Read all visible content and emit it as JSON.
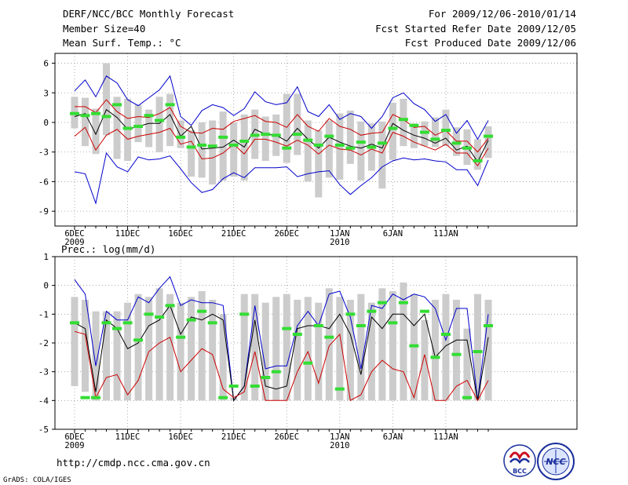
{
  "header": {
    "title": "DERF/NCC/BCC Monthly Forecast",
    "member_size": "Member Size=40",
    "variable": "Mean Surf. Temp.: °C",
    "forecast_period": "For 2009/12/06-2010/01/14",
    "started_refer": "Fcst Started Refer Date 2009/12/05",
    "produced": "Fcst Produced Date 2009/12/06"
  },
  "footer": {
    "url": "http://cmdp.ncc.cma.gov.cn",
    "credit": "GrADS: COLA/IGES",
    "logo_bcc": "BCC",
    "logo_ncc": "NCC"
  },
  "colors": {
    "box": "#cccccc",
    "mean": "#33dd33",
    "median": "#000000",
    "envelope": "#0000cc",
    "quartile": "#cc0000",
    "grid": "#999999"
  },
  "chart_data": [
    {
      "type": "line",
      "name": "temperature",
      "title": "Mean Surf. Temp.: °C",
      "ylabel": "°C",
      "ylim": [
        -10.5,
        7
      ],
      "yticks": [
        6,
        3,
        0,
        -3,
        -6,
        -9
      ],
      "grid": true,
      "x_tick_days": [
        1,
        6,
        11,
        16,
        21,
        26,
        31,
        36
      ],
      "x_tick_labels": [
        "6DEC",
        "11DEC",
        "16DEC",
        "21DEC",
        "26DEC",
        "1JAN",
        "6JAN",
        "11JAN"
      ],
      "x_year_labels": [
        {
          "day": 1,
          "label": "2009"
        },
        {
          "day": 26,
          "label": "2010"
        }
      ],
      "days": [
        1,
        2,
        3,
        4,
        5,
        6,
        7,
        8,
        9,
        10,
        11,
        12,
        13,
        14,
        15,
        16,
        17,
        18,
        19,
        20,
        21,
        22,
        23,
        24,
        25,
        26,
        27,
        28,
        29,
        30,
        31,
        32,
        33,
        34,
        35,
        36,
        37,
        38,
        39,
        40
      ],
      "series": [
        {
          "name": "max",
          "color": "#0000cc",
          "values": [
            3.2,
            4.3,
            2.6,
            4.7,
            4.0,
            2.3,
            1.7,
            2.5,
            3.3,
            4.7,
            0.6,
            -0.3,
            1.2,
            1.8,
            1.5,
            0.7,
            1.4,
            3.1,
            2.1,
            1.8,
            2.0,
            3.6,
            1.1,
            0.6,
            1.8,
            0.3,
            0.9,
            0.6,
            -0.6,
            0.6,
            2.5,
            3.0,
            1.9,
            1.3,
            0.1,
            0.8,
            -1.1,
            0.2,
            -1.7,
            0.2
          ]
        },
        {
          "name": "q75",
          "color": "#cc0000",
          "values": [
            1.6,
            1.6,
            1.0,
            2.3,
            1.1,
            0.4,
            0.6,
            0.5,
            0.9,
            1.5,
            -0.4,
            -1.0,
            -1.1,
            -0.6,
            -0.7,
            0.1,
            0.4,
            0.7,
            0.1,
            0.0,
            -0.5,
            0.8,
            -0.4,
            -0.9,
            0.4,
            -0.4,
            -0.7,
            -1.3,
            -1.1,
            -1.0,
            0.8,
            0.3,
            -0.5,
            -0.4,
            -1.3,
            -0.8,
            -1.9,
            -1.9,
            -3.0,
            -1.6
          ]
        },
        {
          "name": "median",
          "color": "#000000",
          "values": [
            0.6,
            0.9,
            -1.2,
            1.3,
            0.5,
            -0.7,
            -0.4,
            -0.1,
            -0.1,
            0.8,
            -1.4,
            -0.4,
            -2.7,
            -2.6,
            -2.5,
            -1.8,
            -2.5,
            -0.7,
            -1.2,
            -1.3,
            -1.9,
            -0.6,
            -1.7,
            -2.6,
            -1.5,
            -2.0,
            -2.4,
            -2.6,
            -2.2,
            -2.6,
            -0.1,
            -0.8,
            -1.3,
            -1.6,
            -2.1,
            -1.6,
            -2.8,
            -2.4,
            -4.0,
            -1.8
          ]
        },
        {
          "name": "q25",
          "color": "#cc0000",
          "values": [
            -1.4,
            -0.5,
            -2.8,
            -1.3,
            -0.7,
            -1.7,
            -1.4,
            -1.2,
            -1.0,
            -0.6,
            -2.2,
            -1.9,
            -3.7,
            -3.6,
            -3.1,
            -2.2,
            -3.2,
            -1.7,
            -1.7,
            -2.0,
            -2.4,
            -1.8,
            -2.3,
            -3.2,
            -2.3,
            -2.7,
            -2.8,
            -3.3,
            -2.7,
            -3.1,
            -1.0,
            -1.4,
            -2.0,
            -2.4,
            -2.8,
            -2.2,
            -3.1,
            -3.1,
            -4.4,
            -2.6
          ]
        },
        {
          "name": "min",
          "color": "#0000cc",
          "values": [
            -5.0,
            -5.2,
            -8.2,
            -3.1,
            -4.5,
            -5.0,
            -3.5,
            -3.8,
            -3.7,
            -3.4,
            -4.7,
            -6.1,
            -7.1,
            -6.8,
            -5.7,
            -5.1,
            -5.6,
            -4.6,
            -4.6,
            -4.6,
            -4.5,
            -5.5,
            -5.2,
            -5.0,
            -4.9,
            -6.3,
            -7.3,
            -6.4,
            -5.6,
            -4.5,
            -3.9,
            -3.6,
            -3.8,
            -3.7,
            -3.9,
            -4.0,
            -4.8,
            -4.8,
            -6.4,
            -3.8
          ]
        }
      ],
      "boxes": {
        "top": [
          2.6,
          2.5,
          1.4,
          6.0,
          2.6,
          2.4,
          1.8,
          1.3,
          2.6,
          2.9,
          0.2,
          -0.8,
          0.0,
          0.2,
          1.1,
          0.0,
          0.8,
          1.3,
          0.6,
          0.8,
          2.9,
          2.9,
          0.2,
          -0.8,
          0.2,
          0.9,
          1.2,
          0.1,
          -0.1,
          0.1,
          2.0,
          2.4,
          -0.1,
          0.1,
          0.5,
          1.3,
          -0.5,
          -0.7,
          -1.7,
          -0.4
        ],
        "bottom": [
          -0.6,
          -2.4,
          -3.2,
          -1.3,
          -3.7,
          -3.9,
          -2.0,
          -2.5,
          -3.0,
          -2.4,
          -2.6,
          -5.5,
          -5.6,
          -6.3,
          -5.9,
          -5.5,
          -5.9,
          -3.7,
          -3.9,
          -3.4,
          -4.1,
          -3.3,
          -6.0,
          -7.6,
          -5.6,
          -5.8,
          -4.2,
          -5.9,
          -4.9,
          -6.7,
          -3.8,
          -2.4,
          -2.6,
          -2.4,
          -2.5,
          -2.4,
          -3.4,
          -4.3,
          -4.8,
          -3.6
        ]
      },
      "mean_markers": [
        0.9,
        0.7,
        0.9,
        0.6,
        1.8,
        -0.6,
        -0.4,
        0.7,
        0.2,
        1.8,
        -1.5,
        -2.5,
        -2.3,
        -2.4,
        -1.5,
        -2.3,
        -1.9,
        -1.3,
        -1.2,
        -1.3,
        -2.6,
        -1.2,
        -1.8,
        -2.3,
        -1.4,
        -2.3,
        -2.6,
        -2.0,
        -2.5,
        -2.1,
        -0.6,
        0.3,
        -0.3,
        -1.0,
        -1.7,
        -0.8,
        -2.1,
        -2.6,
        -3.9,
        -1.4
      ]
    },
    {
      "type": "line",
      "name": "precipitation",
      "title": "Prec.: log(mm/d)",
      "ylabel": "log(mm/d)",
      "ylim": [
        -5,
        1
      ],
      "yticks": [
        1,
        0,
        -1,
        -2,
        -3,
        -4,
        -5
      ],
      "grid": true,
      "x_tick_days": [
        1,
        6,
        11,
        16,
        21,
        26,
        31,
        36
      ],
      "x_tick_labels": [
        "6DEC",
        "11DEC",
        "16DEC",
        "21DEC",
        "26DEC",
        "1JAN",
        "6JAN",
        "11JAN"
      ],
      "x_year_labels": [
        {
          "day": 1,
          "label": "2009"
        },
        {
          "day": 26,
          "label": "2010"
        }
      ],
      "days": [
        1,
        2,
        3,
        4,
        5,
        6,
        7,
        8,
        9,
        10,
        11,
        12,
        13,
        14,
        15,
        16,
        17,
        18,
        19,
        20,
        21,
        22,
        23,
        24,
        25,
        26,
        27,
        28,
        29,
        30,
        31,
        32,
        33,
        34,
        35,
        36,
        37,
        38,
        39,
        40
      ],
      "series": [
        {
          "name": "max",
          "color": "#0000cc",
          "values": [
            0.2,
            -0.3,
            -2.8,
            -0.9,
            -1.2,
            -1.2,
            -0.4,
            -0.6,
            -0.1,
            0.3,
            -0.7,
            -0.5,
            -0.6,
            -0.6,
            -0.7,
            -4.0,
            -3.5,
            -0.7,
            -2.9,
            -2.8,
            -2.8,
            -1.4,
            -0.9,
            -1.4,
            -0.3,
            -0.2,
            -1.1,
            -2.9,
            -0.7,
            -0.8,
            -0.3,
            -0.5,
            -0.3,
            -0.4,
            -0.8,
            -1.9,
            -0.8,
            -0.8,
            -4.0,
            -1.0
          ]
        },
        {
          "name": "median",
          "color": "#000000",
          "values": [
            -1.3,
            -1.5,
            -3.7,
            -1.2,
            -1.5,
            -2.2,
            -2.0,
            -1.4,
            -1.2,
            -0.7,
            -1.7,
            -1.1,
            -1.2,
            -1.0,
            -1.2,
            -4.0,
            -3.5,
            -1.2,
            -3.5,
            -3.6,
            -3.5,
            -1.5,
            -1.4,
            -1.4,
            -1.5,
            -1.0,
            -1.7,
            -3.1,
            -1.1,
            -1.5,
            -1.0,
            -1.0,
            -1.4,
            -1.0,
            -2.5,
            -2.1,
            -1.9,
            -1.9,
            -4.0,
            -1.8
          ]
        },
        {
          "name": "q25",
          "color": "#cc0000",
          "values": [
            -1.6,
            -1.7,
            -3.9,
            -3.2,
            -3.1,
            -3.8,
            -3.3,
            -2.3,
            -2.0,
            -1.8,
            -3.0,
            -2.6,
            -2.2,
            -2.4,
            -3.6,
            -3.9,
            -3.7,
            -2.3,
            -4.0,
            -4.0,
            -4.0,
            -3.0,
            -2.3,
            -3.4,
            -2.1,
            -1.7,
            -4.0,
            -3.8,
            -3.0,
            -2.6,
            -2.9,
            -3.0,
            -3.9,
            -2.4,
            -4.0,
            -4.0,
            -3.5,
            -3.3,
            -4.0,
            -3.3
          ]
        }
      ],
      "boxes": {
        "top": [
          -0.4,
          -0.5,
          -0.9,
          -0.9,
          -0.9,
          -0.6,
          -0.3,
          -0.4,
          -0.1,
          -0.3,
          -0.6,
          -0.4,
          -0.2,
          -0.5,
          -1.0,
          -3.9,
          -0.3,
          -0.3,
          -0.6,
          -0.4,
          -0.3,
          -0.5,
          -0.4,
          -0.6,
          -0.1,
          -0.4,
          -0.5,
          -0.3,
          -0.6,
          -0.1,
          -0.2,
          0.1,
          -0.3,
          -1.2,
          -0.5,
          -0.3,
          -0.5,
          -1.5,
          -0.3,
          -0.5
        ],
        "bottom": [
          -3.5,
          -3.7,
          -4.0,
          -4.0,
          -4.0,
          -4.0,
          -4.0,
          -4.0,
          -4.0,
          -4.0,
          -4.0,
          -4.0,
          -4.0,
          -4.0,
          -4.0,
          -4.0,
          -4.0,
          -4.0,
          -4.0,
          -4.0,
          -4.0,
          -4.0,
          -4.0,
          -4.0,
          -4.0,
          -4.0,
          -4.0,
          -4.0,
          -4.0,
          -4.0,
          -4.0,
          -4.0,
          -4.0,
          -4.0,
          -4.0,
          -4.0,
          -4.0,
          -4.0,
          -4.0,
          -4.0
        ]
      },
      "mean_markers": [
        -1.3,
        -3.9,
        -3.9,
        -1.3,
        -1.5,
        -1.3,
        -1.9,
        -1.0,
        -1.1,
        -0.7,
        -1.8,
        -1.2,
        -0.9,
        -1.3,
        -3.9,
        -3.5,
        -1.0,
        -3.5,
        -3.2,
        -3.0,
        -1.5,
        -1.7,
        -2.7,
        -1.4,
        -1.8,
        -3.6,
        -1.0,
        -1.4,
        -0.9,
        -0.6,
        -1.3,
        -0.6,
        -2.1,
        -0.9,
        -2.5,
        -1.7,
        -2.4,
        -3.9,
        -2.3,
        -1.4
      ]
    }
  ]
}
